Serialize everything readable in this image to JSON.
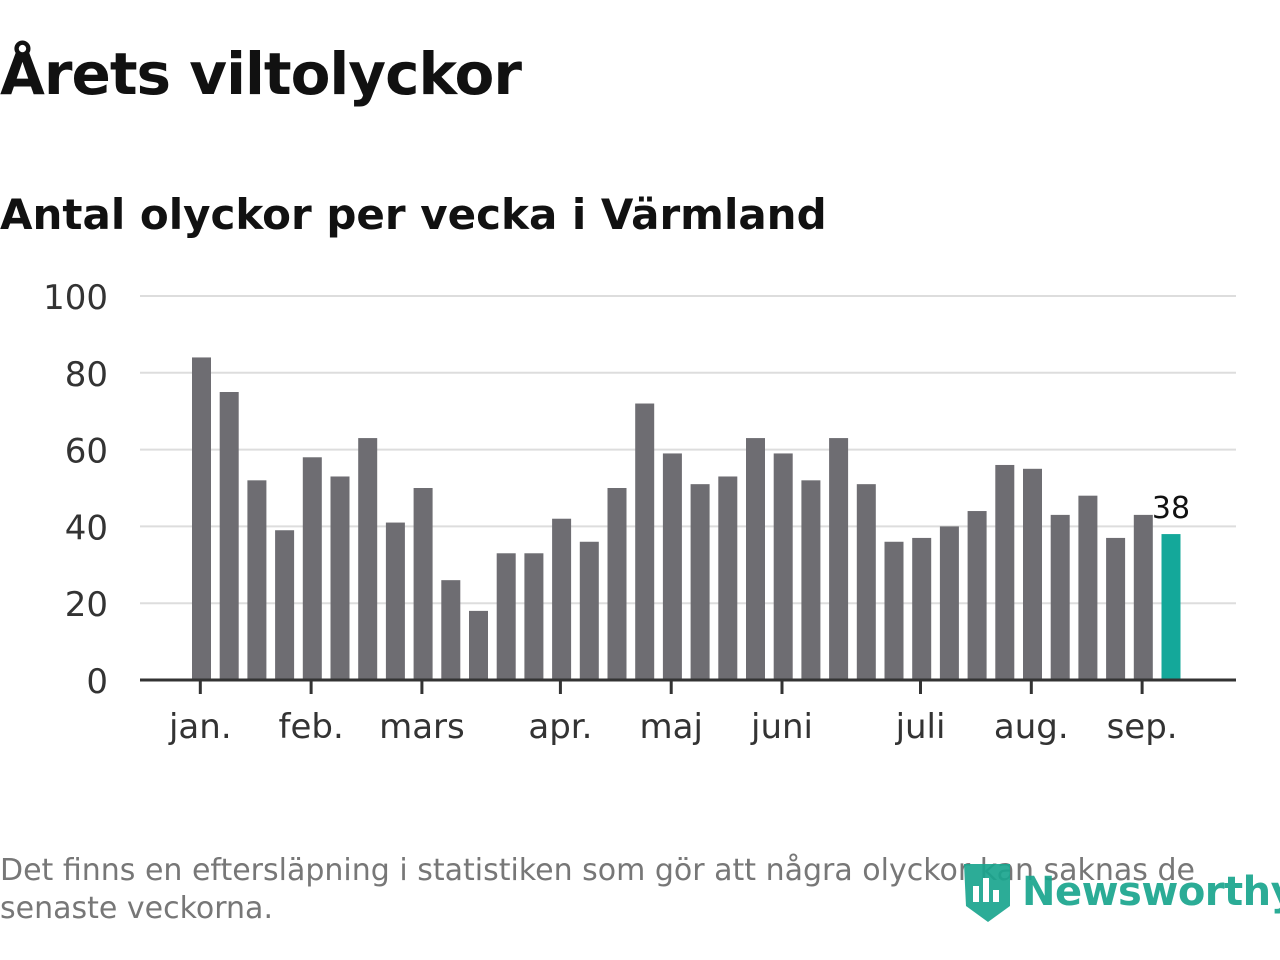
{
  "title": "Årets viltolyckor",
  "subtitle": "Antal olyckor per vecka i Värmland",
  "footnote": "Det finns en eftersläpning i statistiken som gör att några olyckor kan saknas de senaste veckorna.",
  "brand": {
    "name": "Newsworthy",
    "color": "#1aa58e",
    "icon": "newsworthy-logo-icon"
  },
  "chart_data": {
    "type": "bar",
    "ylim": [
      0,
      100
    ],
    "yticks": [
      0,
      20,
      40,
      60,
      80,
      100
    ],
    "grid": true,
    "colors": {
      "bar": "#6e6d72",
      "highlight": "#14a89a",
      "grid": "#dddddd",
      "axis": "#333333"
    },
    "values": [
      84,
      75,
      52,
      39,
      58,
      53,
      63,
      41,
      50,
      26,
      18,
      33,
      33,
      42,
      36,
      50,
      72,
      59,
      51,
      53,
      63,
      59,
      52,
      63,
      51,
      36,
      37,
      40,
      44,
      56,
      55,
      43,
      48,
      37,
      43,
      38
    ],
    "month_ticks": [
      {
        "label": "jan.",
        "index": 0.3
      },
      {
        "label": "feb.",
        "index": 4.3
      },
      {
        "label": "mars",
        "index": 8.3
      },
      {
        "label": "apr.",
        "index": 13.3
      },
      {
        "label": "maj",
        "index": 17.3
      },
      {
        "label": "juni",
        "index": 21.3
      },
      {
        "label": "juli",
        "index": 26.3
      },
      {
        "label": "aug.",
        "index": 30.3
      },
      {
        "label": "sep.",
        "index": 34.3
      }
    ],
    "highlight_index": 35,
    "highlight_label": "38"
  }
}
